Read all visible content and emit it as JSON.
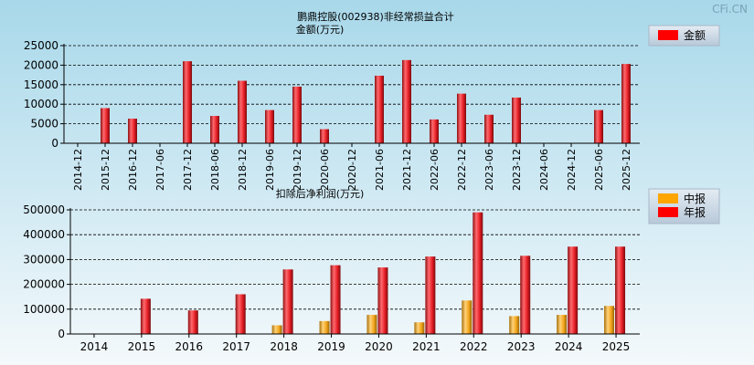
{
  "watermark": "CFi.CN",
  "colors": {
    "bg_top": "#a8d8ea",
    "bg_bottom": "#f4f9fb",
    "red_bar": "#e41d24",
    "orange_bar": "#f2a51a",
    "legend_bg": "#c9d6e3"
  },
  "chart_data": [
    {
      "type": "bar",
      "title": "鹏鼎控股(002938)非经常损益合计",
      "subtitle": "金额(万元)",
      "legend": [
        "金额"
      ],
      "legend_placement": "top-right",
      "grid": true,
      "ylim": [
        0,
        25000
      ],
      "yticks": [
        "0",
        "5000",
        "10000",
        "15000",
        "20000",
        "25000"
      ],
      "categories": [
        "2014-12",
        "2015-12",
        "2016-12",
        "2017-06",
        "2017-12",
        "2018-06",
        "2018-12",
        "2019-06",
        "2019-12",
        "2020-06",
        "2020-12",
        "2021-06",
        "2021-12",
        "2022-06",
        "2022-12",
        "2023-06",
        "2023-12",
        "2024-06",
        "2024-12",
        "2025-06",
        "2025-12"
      ],
      "series": [
        {
          "name": "金额",
          "values": [
            0,
            9000,
            6300,
            0,
            21000,
            7000,
            16000,
            8500,
            14500,
            3600,
            0,
            17300,
            21300,
            6100,
            12700,
            7300,
            11700,
            0,
            0,
            8500,
            20300
          ]
        }
      ]
    },
    {
      "type": "bar",
      "title": "扣除后净利润(万元)",
      "legend": [
        "中报",
        "年报"
      ],
      "legend_placement": "top-right",
      "grid": true,
      "ylim": [
        0,
        500000
      ],
      "yticks": [
        "0",
        "100000",
        "200000",
        "300000",
        "400000",
        "500000"
      ],
      "categories": [
        "2014",
        "2015",
        "2016",
        "2017",
        "2018",
        "2019",
        "2020",
        "2021",
        "2022",
        "2023",
        "2024",
        "2025"
      ],
      "series": [
        {
          "name": "中报",
          "values": [
            0,
            0,
            0,
            0,
            35000,
            52000,
            77000,
            47000,
            135000,
            72000,
            77000,
            113000
          ]
        },
        {
          "name": "年报",
          "values": [
            0,
            142000,
            95000,
            160000,
            260000,
            277000,
            268000,
            312000,
            490000,
            315000,
            352000,
            352000
          ]
        }
      ]
    }
  ]
}
